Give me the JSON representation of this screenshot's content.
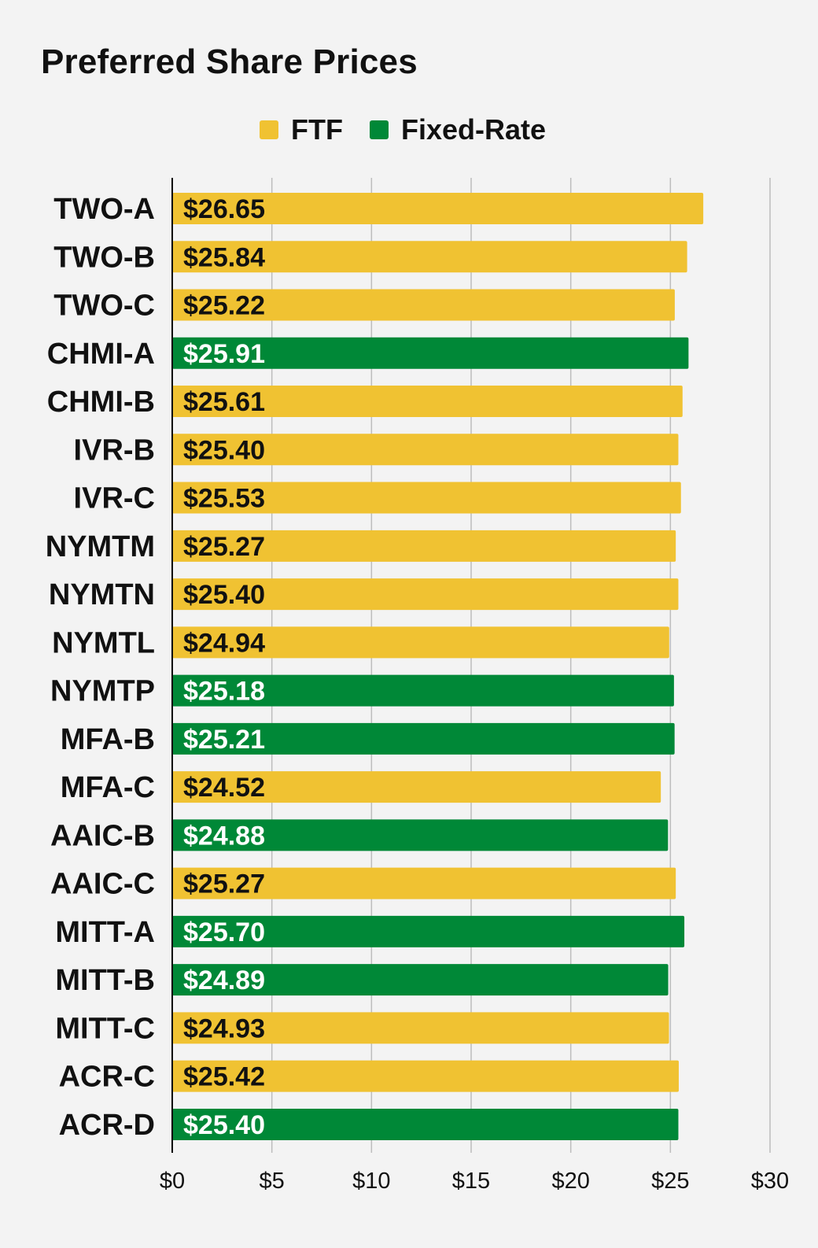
{
  "colors": {
    "ftf": "#f0c232",
    "fixed_rate": "#008837",
    "grid": "#bdbdbd",
    "axis": "#000000",
    "label_on_ftf": "#111111",
    "label_on_fixed": "#ffffff"
  },
  "chart_data": {
    "type": "bar",
    "orientation": "horizontal",
    "title": "Preferred Share Prices",
    "xlabel": "",
    "ylabel": "",
    "xlim": [
      0,
      30
    ],
    "x_ticks": [
      0,
      5,
      10,
      15,
      20,
      25,
      30
    ],
    "x_tick_labels": [
      "$0",
      "$5",
      "$10",
      "$15",
      "$20",
      "$25",
      "$30"
    ],
    "grid": true,
    "legend": {
      "placement": "top-center",
      "entries": [
        {
          "key": "ftf",
          "label": "FTF"
        },
        {
          "key": "fixed_rate",
          "label": "Fixed-Rate"
        }
      ]
    },
    "categories": [
      "TWO-A",
      "TWO-B",
      "TWO-C",
      "CHMI-A",
      "CHMI-B",
      "IVR-B",
      "IVR-C",
      "NYMTM",
      "NYMTN",
      "NYMTL",
      "NYMTP",
      "MFA-B",
      "MFA-C",
      "AAIC-B",
      "AAIC-C",
      "MITT-A",
      "MITT-B",
      "MITT-C",
      "ACR-C",
      "ACR-D"
    ],
    "values": [
      26.65,
      25.84,
      25.22,
      25.91,
      25.61,
      25.4,
      25.53,
      25.27,
      25.4,
      24.94,
      25.18,
      25.21,
      24.52,
      24.88,
      25.27,
      25.7,
      24.89,
      24.93,
      25.42,
      25.4
    ],
    "value_labels": [
      "$26.65",
      "$25.84",
      "$25.22",
      "$25.91",
      "$25.61",
      "$25.40",
      "$25.53",
      "$25.27",
      "$25.40",
      "$24.94",
      "$25.18",
      "$25.21",
      "$24.52",
      "$24.88",
      "$25.27",
      "$25.70",
      "$24.89",
      "$24.93",
      "$25.42",
      "$25.40"
    ],
    "series_type": [
      "ftf",
      "ftf",
      "ftf",
      "fixed_rate",
      "ftf",
      "ftf",
      "ftf",
      "ftf",
      "ftf",
      "ftf",
      "fixed_rate",
      "fixed_rate",
      "ftf",
      "fixed_rate",
      "ftf",
      "fixed_rate",
      "fixed_rate",
      "ftf",
      "ftf",
      "fixed_rate"
    ]
  }
}
